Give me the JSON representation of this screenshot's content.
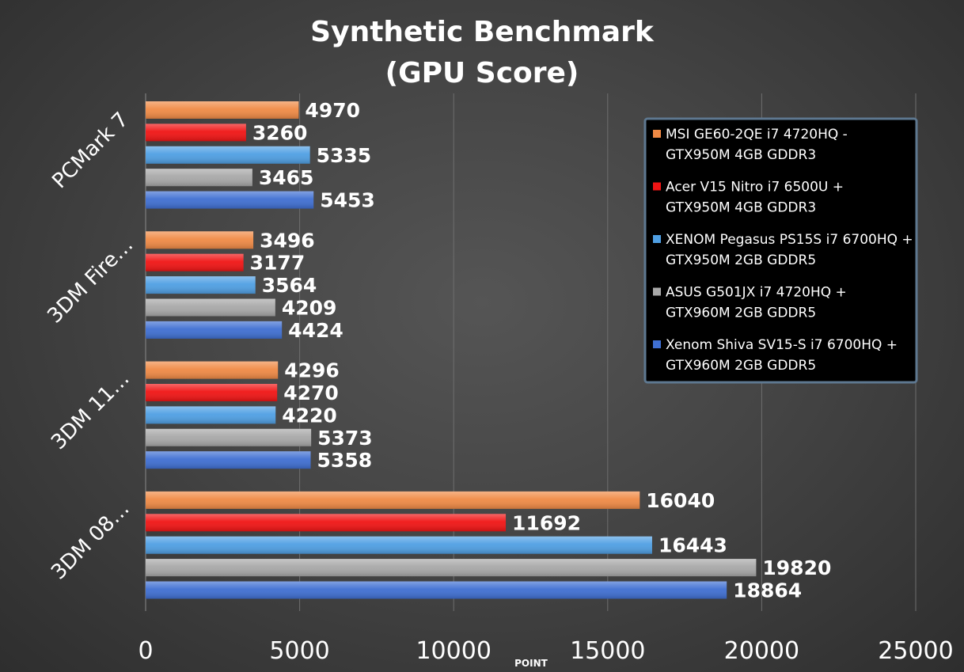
{
  "chart_data": {
    "type": "bar",
    "orientation": "horizontal",
    "title": [
      "Synthetic Benchmark",
      "(GPU Score)"
    ],
    "xlabel": "POINT",
    "ylabel": "",
    "xlim": [
      0,
      25000
    ],
    "xticks": [
      0,
      5000,
      10000,
      15000,
      20000,
      25000
    ],
    "grid": true,
    "legend_position": "top-right",
    "categories": [
      "PCMark 7",
      "3DM Fire…",
      "3DM 11…",
      "3DM 08…"
    ],
    "series": [
      {
        "name": [
          "MSI GE60-2QE i7 4720HQ -",
          "GTX950M 4GB GDDR3"
        ],
        "color": "#f08a45",
        "values": [
          4970,
          3496,
          4296,
          16040
        ]
      },
      {
        "name": [
          "Acer V15 Nitro i7 6500U +",
          "GTX950M 4GB GDDR3"
        ],
        "color": "#f01414",
        "values": [
          3260,
          3177,
          4270,
          11692
        ]
      },
      {
        "name": [
          "XENOM Pegasus PS15S i7 6700HQ +",
          "GTX950M 2GB GDDR5"
        ],
        "color": "#4f9fe3",
        "values": [
          5335,
          3564,
          4220,
          16443
        ]
      },
      {
        "name": [
          "ASUS G501JX i7 4720HQ +",
          "GTX960M 2GB GDDR5"
        ],
        "color": "#a8a8a8",
        "values": [
          3465,
          4209,
          5373,
          19820
        ]
      },
      {
        "name": [
          "Xenom Shiva SV15-S i7 6700HQ +",
          "GTX960M 2GB GDDR5"
        ],
        "color": "#3f6fd2",
        "values": [
          5453,
          4424,
          5358,
          18864
        ]
      }
    ]
  }
}
